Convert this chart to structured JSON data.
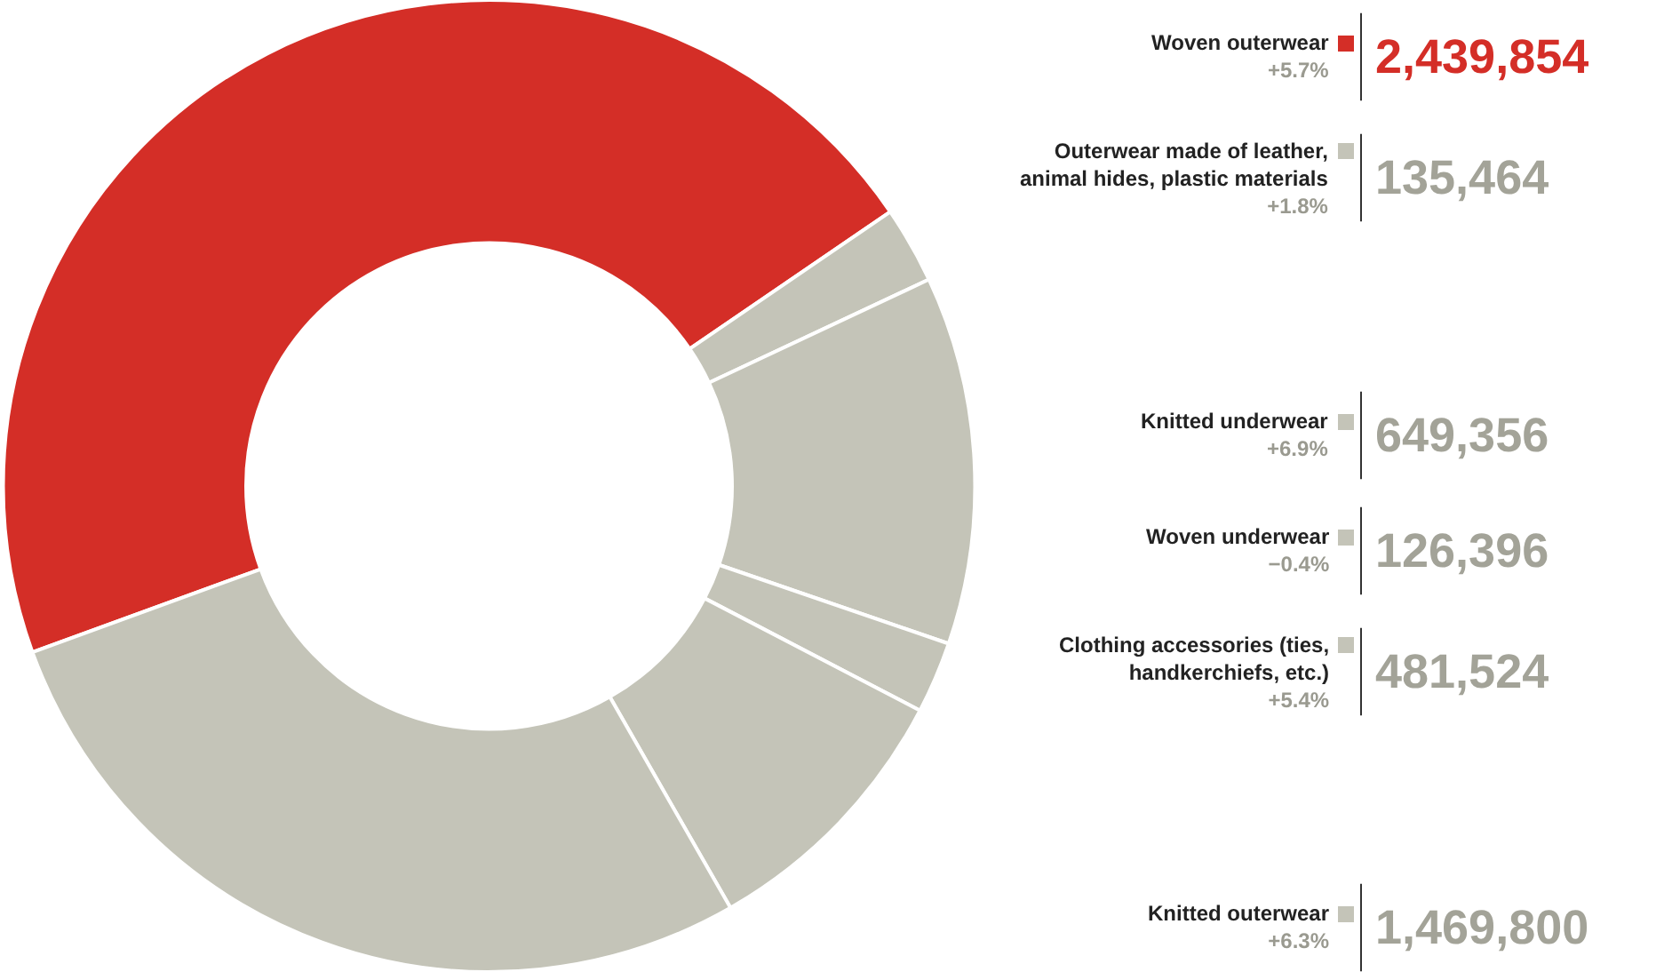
{
  "chart_data": {
    "type": "donut",
    "categories": [
      "Woven outerwear",
      "Outerwear made of leather, animal hides, plastic materials",
      "Knitted underwear",
      "Woven underwear",
      "Clothing accessories (ties, handkerchiefs, etc.)",
      "Knitted outerwear"
    ],
    "values": [
      2439854,
      135464,
      649356,
      126396,
      481524,
      1469800
    ],
    "value_labels": [
      "2,439,854",
      "135,464",
      "649,356",
      "126,396",
      "481,524",
      "1,469,800"
    ],
    "colors": [
      "#d42e27",
      "#c4c4b8",
      "#c4c4b8",
      "#c4c4b8",
      "#c4c4b8",
      "#c4c4b8"
    ],
    "annotations": [
      "+5.7%",
      "+1.8%",
      "+6.9%",
      "−0.4%",
      "+5.4%",
      "+6.3%"
    ],
    "legend": "right"
  }
}
